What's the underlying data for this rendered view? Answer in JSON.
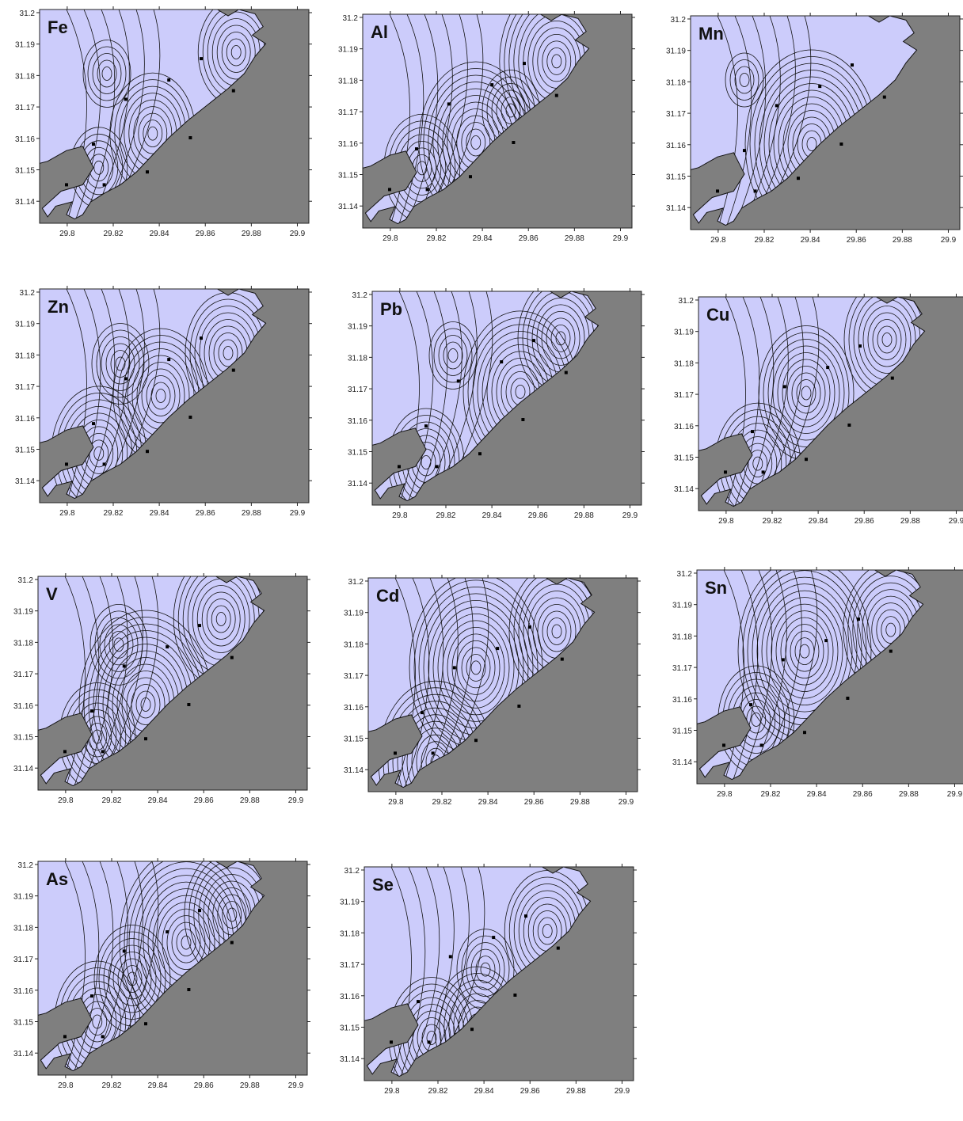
{
  "maps": {
    "xaxis": {
      "lim": [
        29.788,
        29.905
      ],
      "ticks": [
        29.8,
        29.82,
        29.84,
        29.86,
        29.88,
        29.9
      ]
    },
    "yaxis": {
      "lim": [
        31.133,
        31.201
      ],
      "ticks": [
        31.14,
        31.15,
        31.16,
        31.17,
        31.18,
        31.19,
        31.2
      ]
    },
    "panels": [
      {
        "label": "Fe"
      },
      {
        "label": "Al"
      },
      {
        "label": "Mn"
      },
      {
        "label": "Zn"
      },
      {
        "label": "Pb"
      },
      {
        "label": "Cu"
      },
      {
        "label": "V"
      },
      {
        "label": "Cd"
      },
      {
        "label": "Sn"
      },
      {
        "label": "As"
      },
      {
        "label": "Se"
      }
    ]
  }
}
